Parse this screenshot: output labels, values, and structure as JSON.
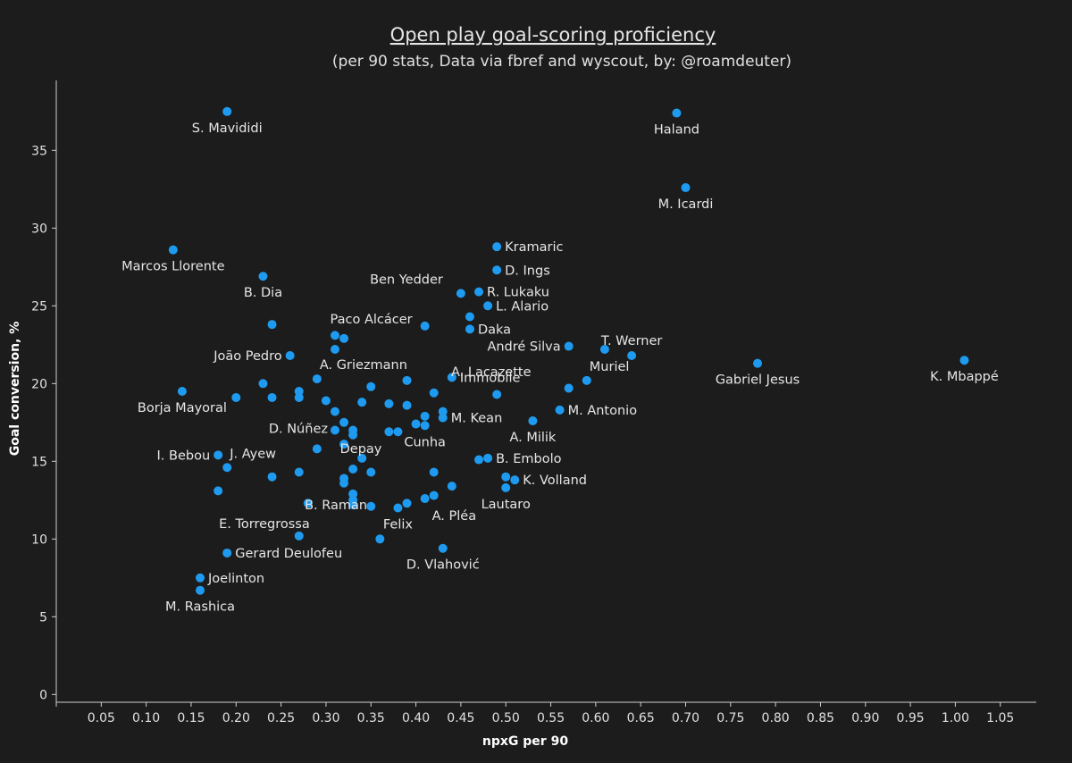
{
  "chart_data": {
    "type": "scatter",
    "title": "Open play goal-scoring proficiency",
    "subtitle": "(per 90 stats, Data via fbref and wyscout, by: @roamdeuter)",
    "xlabel": "npxG per 90",
    "ylabel": "Goal conversion, %",
    "xlim": [
      0,
      1.09
    ],
    "ylim": [
      -0.5,
      39.5
    ],
    "xticks": [
      "0.05",
      "0.10",
      "0.15",
      "0.20",
      "0.25",
      "0.30",
      "0.35",
      "0.40",
      "0.45",
      "0.50",
      "0.55",
      "0.60",
      "0.65",
      "0.70",
      "0.75",
      "0.80",
      "0.85",
      "0.90",
      "0.95",
      "1.00",
      "1.05"
    ],
    "yticks": [
      "0",
      "5",
      "10",
      "15",
      "20",
      "25",
      "30",
      "35"
    ],
    "grid": false,
    "point_color": "#1e9bf0",
    "points": [
      {
        "x": 0.19,
        "y": 37.5,
        "label": "S. Mavididi",
        "pos": "below"
      },
      {
        "x": 0.69,
        "y": 37.4,
        "label": "Haland",
        "pos": "below"
      },
      {
        "x": 0.7,
        "y": 32.6,
        "label": "M. Icardi",
        "pos": "below"
      },
      {
        "x": 0.13,
        "y": 28.6,
        "label": "Marcos Llorente",
        "pos": "below"
      },
      {
        "x": 0.23,
        "y": 26.9,
        "label": "B. Dia",
        "pos": "below"
      },
      {
        "x": 0.49,
        "y": 28.8,
        "label": "Kramaric",
        "pos": "right"
      },
      {
        "x": 0.49,
        "y": 27.3,
        "label": "D. Ings",
        "pos": "right"
      },
      {
        "x": 0.45,
        "y": 25.8,
        "label": "Ben Yedder",
        "pos": "above-left"
      },
      {
        "x": 0.47,
        "y": 25.9,
        "label": "R. Lukaku",
        "pos": "right"
      },
      {
        "x": 0.48,
        "y": 25.0,
        "label": "L. Alario",
        "pos": "right"
      },
      {
        "x": 0.46,
        "y": 24.3,
        "label": "",
        "pos": "none"
      },
      {
        "x": 0.46,
        "y": 23.5,
        "label": "Daka",
        "pos": "right"
      },
      {
        "x": 0.41,
        "y": 23.7,
        "label": "Paco Alcácer",
        "pos": "left-above"
      },
      {
        "x": 0.24,
        "y": 23.8,
        "label": "",
        "pos": "none"
      },
      {
        "x": 0.31,
        "y": 23.1,
        "label": "",
        "pos": "none"
      },
      {
        "x": 0.32,
        "y": 22.9,
        "label": "",
        "pos": "none"
      },
      {
        "x": 0.31,
        "y": 22.2,
        "label": "A. Lacazette",
        "pos": "offset-lacazette"
      },
      {
        "x": 0.57,
        "y": 22.4,
        "label": "André Silva",
        "pos": "left"
      },
      {
        "x": 0.61,
        "y": 22.2,
        "label": "",
        "pos": "none"
      },
      {
        "x": 0.64,
        "y": 21.8,
        "label": "T. Werner",
        "pos": "above"
      },
      {
        "x": 0.26,
        "y": 21.8,
        "label": "João Pedro",
        "pos": "left"
      },
      {
        "x": 0.78,
        "y": 21.3,
        "label": "Gabriel Jesus",
        "pos": "below"
      },
      {
        "x": 1.01,
        "y": 21.5,
        "label": "K. Mbappé",
        "pos": "below"
      },
      {
        "x": 0.59,
        "y": 20.2,
        "label": "Muriel",
        "pos": "above-right"
      },
      {
        "x": 0.29,
        "y": 20.3,
        "label": "A. Griezmann",
        "pos": "above-right"
      },
      {
        "x": 0.44,
        "y": 20.4,
        "label": "Immobile",
        "pos": "right"
      },
      {
        "x": 0.39,
        "y": 20.2,
        "label": "",
        "pos": "none"
      },
      {
        "x": 0.23,
        "y": 20.0,
        "label": "",
        "pos": "none"
      },
      {
        "x": 0.35,
        "y": 19.8,
        "label": "",
        "pos": "none"
      },
      {
        "x": 0.14,
        "y": 19.5,
        "label": "Borja Mayoral",
        "pos": "below"
      },
      {
        "x": 0.27,
        "y": 19.5,
        "label": "",
        "pos": "none"
      },
      {
        "x": 0.27,
        "y": 19.1,
        "label": "",
        "pos": "none"
      },
      {
        "x": 0.57,
        "y": 19.7,
        "label": "",
        "pos": "none"
      },
      {
        "x": 0.42,
        "y": 19.4,
        "label": "",
        "pos": "none"
      },
      {
        "x": 0.49,
        "y": 19.3,
        "label": "",
        "pos": "none"
      },
      {
        "x": 0.2,
        "y": 19.1,
        "label": "",
        "pos": "none"
      },
      {
        "x": 0.24,
        "y": 19.1,
        "label": "",
        "pos": "none"
      },
      {
        "x": 0.3,
        "y": 18.9,
        "label": "",
        "pos": "none"
      },
      {
        "x": 0.34,
        "y": 18.8,
        "label": "",
        "pos": "none"
      },
      {
        "x": 0.37,
        "y": 18.7,
        "label": "",
        "pos": "none"
      },
      {
        "x": 0.39,
        "y": 18.6,
        "label": "",
        "pos": "none"
      },
      {
        "x": 0.56,
        "y": 18.3,
        "label": "M. Antonio",
        "pos": "right"
      },
      {
        "x": 0.31,
        "y": 18.2,
        "label": "D. Núñez",
        "pos": "below-left"
      },
      {
        "x": 0.43,
        "y": 18.2,
        "label": "",
        "pos": "none"
      },
      {
        "x": 0.41,
        "y": 17.9,
        "label": "",
        "pos": "none"
      },
      {
        "x": 0.43,
        "y": 17.8,
        "label": "M. Kean",
        "pos": "right"
      },
      {
        "x": 0.53,
        "y": 17.6,
        "label": "A. Milik",
        "pos": "below"
      },
      {
        "x": 0.32,
        "y": 17.5,
        "label": "",
        "pos": "none"
      },
      {
        "x": 0.4,
        "y": 17.4,
        "label": "",
        "pos": "none"
      },
      {
        "x": 0.41,
        "y": 17.3,
        "label": "Cunha",
        "pos": "below"
      },
      {
        "x": 0.31,
        "y": 17.0,
        "label": "",
        "pos": "none"
      },
      {
        "x": 0.33,
        "y": 17.0,
        "label": "",
        "pos": "none"
      },
      {
        "x": 0.33,
        "y": 16.7,
        "label": "",
        "pos": "none"
      },
      {
        "x": 0.37,
        "y": 16.9,
        "label": "Depay",
        "pos": "below-left"
      },
      {
        "x": 0.38,
        "y": 16.9,
        "label": "",
        "pos": "none"
      },
      {
        "x": 0.32,
        "y": 16.1,
        "label": "",
        "pos": "none"
      },
      {
        "x": 0.29,
        "y": 15.8,
        "label": "",
        "pos": "none"
      },
      {
        "x": 0.18,
        "y": 15.4,
        "label": "I. Bebou",
        "pos": "left"
      },
      {
        "x": 0.19,
        "y": 14.6,
        "label": "J. Ayew",
        "pos": "above-right"
      },
      {
        "x": 0.34,
        "y": 15.2,
        "label": "",
        "pos": "none"
      },
      {
        "x": 0.47,
        "y": 15.1,
        "label": "",
        "pos": "none"
      },
      {
        "x": 0.48,
        "y": 15.2,
        "label": "B. Embolo",
        "pos": "right"
      },
      {
        "x": 0.33,
        "y": 14.5,
        "label": "",
        "pos": "none"
      },
      {
        "x": 0.35,
        "y": 14.3,
        "label": "",
        "pos": "none"
      },
      {
        "x": 0.42,
        "y": 14.3,
        "label": "",
        "pos": "none"
      },
      {
        "x": 0.27,
        "y": 14.3,
        "label": "",
        "pos": "none"
      },
      {
        "x": 0.24,
        "y": 14.0,
        "label": "",
        "pos": "none"
      },
      {
        "x": 0.32,
        "y": 13.9,
        "label": "",
        "pos": "none"
      },
      {
        "x": 0.32,
        "y": 13.6,
        "label": "",
        "pos": "none"
      },
      {
        "x": 0.5,
        "y": 14.0,
        "label": "",
        "pos": "none"
      },
      {
        "x": 0.51,
        "y": 13.8,
        "label": "K. Volland",
        "pos": "right"
      },
      {
        "x": 0.44,
        "y": 13.4,
        "label": "",
        "pos": "none"
      },
      {
        "x": 0.5,
        "y": 13.3,
        "label": "Lautaro",
        "pos": "below"
      },
      {
        "x": 0.18,
        "y": 13.1,
        "label": "",
        "pos": "none"
      },
      {
        "x": 0.33,
        "y": 12.9,
        "label": "B. Raman",
        "pos": "offset-raman"
      },
      {
        "x": 0.42,
        "y": 12.8,
        "label": "",
        "pos": "none"
      },
      {
        "x": 0.33,
        "y": 12.5,
        "label": "",
        "pos": "none"
      },
      {
        "x": 0.41,
        "y": 12.6,
        "label": "A. Pléa",
        "pos": "below-right"
      },
      {
        "x": 0.28,
        "y": 12.3,
        "label": "",
        "pos": "none"
      },
      {
        "x": 0.33,
        "y": 12.2,
        "label": "E. Torregrossa",
        "pos": "offset-torregrossa"
      },
      {
        "x": 0.39,
        "y": 12.3,
        "label": "",
        "pos": "none"
      },
      {
        "x": 0.35,
        "y": 12.1,
        "label": "",
        "pos": "none"
      },
      {
        "x": 0.38,
        "y": 12.0,
        "label": "Felix",
        "pos": "below"
      },
      {
        "x": 0.27,
        "y": 10.2,
        "label": "",
        "pos": "none"
      },
      {
        "x": 0.36,
        "y": 10.0,
        "label": "",
        "pos": "none"
      },
      {
        "x": 0.19,
        "y": 9.1,
        "label": "Gerard Deulofeu",
        "pos": "right"
      },
      {
        "x": 0.43,
        "y": 9.4,
        "label": "D. Vlahović",
        "pos": "below"
      },
      {
        "x": 0.16,
        "y": 7.5,
        "label": "Joelinton",
        "pos": "right"
      },
      {
        "x": 0.16,
        "y": 6.7,
        "label": "M. Rashica",
        "pos": "below"
      }
    ]
  }
}
